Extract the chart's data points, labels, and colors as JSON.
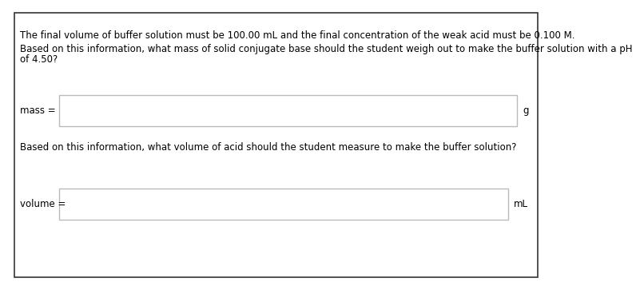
{
  "background_color": "#ffffff",
  "outer_border_color": "#333333",
  "text1": "The final volume of buffer solution must be 100.00 mL and the final concentration of the weak acid must be 0.100 M.",
  "text2_line1": "Based on this information, what mass of solid conjugate base should the student weigh out to make the buffer solution with a pH",
  "text2_line2": "of 4.50?",
  "label_mass": "mass =",
  "unit_mass": "g",
  "text3": "Based on this information, what volume of acid should the student measure to make the buffer solution?",
  "label_volume": "volume =",
  "unit_volume": "mL",
  "input_box_color": "#ffffff",
  "input_box_edge_color": "#bbbbbb",
  "font_size": 8.5
}
